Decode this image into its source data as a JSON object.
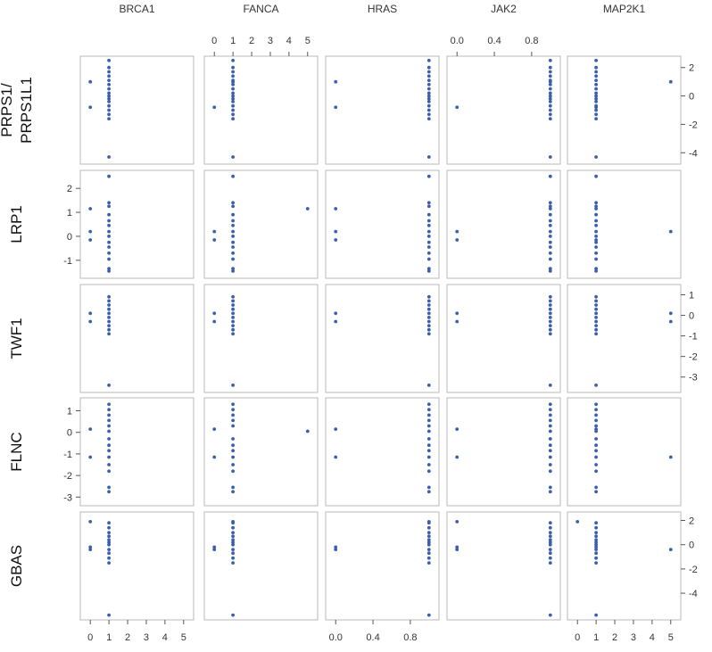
{
  "chart_data": {
    "type": "scatter",
    "title": "",
    "columns": [
      {
        "name": "BRCA1",
        "xlim": [
          -0.25,
          5.25
        ],
        "ticks": [
          0,
          1,
          2,
          3,
          4,
          5
        ],
        "tick_labels": [
          "0",
          "1",
          "2",
          "3",
          "4",
          "5"
        ]
      },
      {
        "name": "FANCA",
        "xlim": [
          -0.25,
          5.25
        ],
        "ticks": [
          0,
          1,
          2,
          3,
          4,
          5
        ],
        "tick_labels": [
          "0",
          "1",
          "2",
          "3",
          "4",
          "5"
        ]
      },
      {
        "name": "HRAS",
        "xlim": [
          -0.05,
          1.05
        ],
        "ticks": [
          0.0,
          0.4,
          0.8
        ],
        "tick_labels": [
          "0.0",
          "0.4",
          "0.8"
        ]
      },
      {
        "name": "JAK2",
        "xlim": [
          -0.05,
          1.05
        ],
        "ticks": [
          0.0,
          0.4,
          0.8
        ],
        "tick_labels": [
          "0.0",
          "0.4",
          "0.8"
        ]
      },
      {
        "name": "MAP2K1",
        "xlim": [
          -0.25,
          5.25
        ],
        "ticks": [
          0,
          1,
          2,
          3,
          4,
          5
        ],
        "tick_labels": [
          "0",
          "1",
          "2",
          "3",
          "4",
          "5"
        ]
      }
    ],
    "rows": [
      {
        "name": "PRPS1/\nPRPS1L1",
        "label_lines": [
          "PRPS1/",
          "PRPS1L1"
        ],
        "ylim": [
          -4.8,
          2.8
        ],
        "ticks": [
          -4,
          -2,
          0,
          2
        ],
        "tick_labels": [
          "-4",
          "-2",
          "0",
          "2"
        ],
        "groups": [
          {
            "v": -4.3,
            "c": [
              1,
              1,
              1,
              1,
              1
            ]
          },
          {
            "v": -1.6,
            "c": [
              1,
              1,
              1,
              1,
              1
            ]
          },
          {
            "v": -1.3,
            "c": [
              1,
              1,
              1,
              1,
              1
            ]
          },
          {
            "v": -1.0,
            "c": [
              1,
              1,
              1,
              1,
              1
            ]
          },
          {
            "v": -0.8,
            "c": [
              0,
              0,
              0,
              0,
              1
            ]
          },
          {
            "v": -0.7,
            "c": [
              1,
              1,
              1,
              1,
              1
            ]
          },
          {
            "v": -0.4,
            "c": [
              1,
              1,
              1,
              1,
              1
            ]
          },
          {
            "v": -0.2,
            "c": [
              1,
              1,
              1,
              1,
              1
            ]
          },
          {
            "v": 0.0,
            "c": [
              1,
              1,
              1,
              1,
              1
            ]
          },
          {
            "v": 0.2,
            "c": [
              1,
              1,
              1,
              1,
              1
            ]
          },
          {
            "v": 0.5,
            "c": [
              1,
              1,
              1,
              1,
              1
            ]
          },
          {
            "v": 0.8,
            "c": [
              1,
              1,
              1,
              1,
              1
            ]
          },
          {
            "v": 1.0,
            "c": [
              0,
              1,
              0,
              1,
              2
            ]
          },
          {
            "v": 1.1,
            "c": [
              1,
              1,
              1,
              1,
              1
            ]
          },
          {
            "v": 1.4,
            "c": [
              1,
              1,
              1,
              1,
              1
            ]
          },
          {
            "v": 1.7,
            "c": [
              1,
              1,
              1,
              1,
              1
            ]
          },
          {
            "v": 2.0,
            "c": [
              1,
              1,
              1,
              1,
              1
            ]
          },
          {
            "v": 2.5,
            "c": [
              1,
              1,
              1,
              1,
              1
            ]
          }
        ]
      },
      {
        "name": "LRP1",
        "label_lines": [
          "LRP1"
        ],
        "ylim": [
          -1.75,
          2.75
        ],
        "ticks": [
          -1,
          0,
          1,
          2
        ],
        "tick_labels": [
          "-1",
          "0",
          "1",
          "2"
        ],
        "groups": [
          {
            "v": -1.45,
            "c": [
              1,
              1,
              1,
              1,
              1
            ]
          },
          {
            "v": -1.35,
            "c": [
              1,
              1,
              1,
              1,
              1
            ]
          },
          {
            "v": -0.95,
            "c": [
              1,
              1,
              1,
              1,
              1
            ]
          },
          {
            "v": -0.7,
            "c": [
              1,
              1,
              1,
              1,
              1
            ]
          },
          {
            "v": -0.45,
            "c": [
              1,
              1,
              1,
              1,
              1
            ]
          },
          {
            "v": -0.25,
            "c": [
              1,
              1,
              1,
              1,
              1
            ]
          },
          {
            "v": -0.15,
            "c": [
              0,
              0,
              0,
              0,
              1
            ]
          },
          {
            "v": 0.0,
            "c": [
              1,
              1,
              1,
              1,
              1
            ]
          },
          {
            "v": 0.2,
            "c": [
              1,
              1,
              1,
              1,
              1
            ]
          },
          {
            "v": 0.2,
            "c": [
              0,
              0,
              0,
              0,
              2
            ]
          },
          {
            "v": 0.45,
            "c": [
              1,
              1,
              1,
              1,
              1
            ]
          },
          {
            "v": 0.65,
            "c": [
              1,
              1,
              1,
              1,
              1
            ]
          },
          {
            "v": 0.9,
            "c": [
              1,
              1,
              1,
              1,
              1
            ]
          },
          {
            "v": 1.15,
            "c": [
              0,
              2,
              0,
              1,
              1
            ]
          },
          {
            "v": 1.25,
            "c": [
              1,
              1,
              1,
              1,
              1
            ]
          },
          {
            "v": 1.4,
            "c": [
              1,
              1,
              1,
              1,
              1
            ]
          },
          {
            "v": 2.5,
            "c": [
              1,
              1,
              1,
              1,
              1
            ]
          }
        ]
      },
      {
        "name": "TWF1",
        "label_lines": [
          "TWF1"
        ],
        "ylim": [
          -3.75,
          1.5
        ],
        "ticks": [
          -3,
          -2,
          -1,
          0,
          1
        ],
        "tick_labels": [
          "-3",
          "-2",
          "-1",
          "0",
          "1"
        ],
        "groups": [
          {
            "v": -3.4,
            "c": [
              1,
              1,
              1,
              1,
              1
            ]
          },
          {
            "v": -0.9,
            "c": [
              1,
              1,
              1,
              1,
              1
            ]
          },
          {
            "v": -0.7,
            "c": [
              1,
              1,
              1,
              1,
              1
            ]
          },
          {
            "v": -0.5,
            "c": [
              1,
              1,
              1,
              1,
              1
            ]
          },
          {
            "v": -0.3,
            "c": [
              1,
              1,
              1,
              1,
              1
            ]
          },
          {
            "v": -0.3,
            "c": [
              0,
              0,
              0,
              0,
              2
            ]
          },
          {
            "v": -0.1,
            "c": [
              1,
              1,
              1,
              1,
              1
            ]
          },
          {
            "v": 0.1,
            "c": [
              1,
              1,
              1,
              1,
              1
            ]
          },
          {
            "v": 0.1,
            "c": [
              0,
              0,
              0,
              0,
              2
            ]
          },
          {
            "v": 0.3,
            "c": [
              1,
              1,
              1,
              1,
              1
            ]
          },
          {
            "v": 0.5,
            "c": [
              1,
              1,
              1,
              1,
              1
            ]
          },
          {
            "v": 0.7,
            "c": [
              1,
              1,
              1,
              1,
              1
            ]
          },
          {
            "v": 0.9,
            "c": [
              1,
              1,
              1,
              1,
              1
            ]
          }
        ]
      },
      {
        "name": "FLNC",
        "label_lines": [
          "FLNC"
        ],
        "ylim": [
          -3.4,
          1.6
        ],
        "ticks": [
          -3,
          -2,
          -1,
          0,
          1
        ],
        "tick_labels": [
          "-3",
          "-2",
          "-1",
          "0",
          "1"
        ],
        "groups": [
          {
            "v": -2.75,
            "c": [
              1,
              1,
              1,
              1,
              1
            ]
          },
          {
            "v": -2.55,
            "c": [
              1,
              1,
              1,
              1,
              1
            ]
          },
          {
            "v": -1.8,
            "c": [
              1,
              1,
              1,
              1,
              1
            ]
          },
          {
            "v": -1.5,
            "c": [
              1,
              1,
              1,
              1,
              1
            ]
          },
          {
            "v": -1.15,
            "c": [
              1,
              1,
              1,
              1,
              1
            ]
          },
          {
            "v": -1.15,
            "c": [
              0,
              0,
              0,
              0,
              2
            ]
          },
          {
            "v": -0.85,
            "c": [
              1,
              1,
              1,
              1,
              1
            ]
          },
          {
            "v": -0.6,
            "c": [
              1,
              1,
              1,
              1,
              1
            ]
          },
          {
            "v": -0.3,
            "c": [
              1,
              1,
              1,
              1,
              1
            ]
          },
          {
            "v": 0.05,
            "c": [
              1,
              2,
              1,
              1,
              1
            ]
          },
          {
            "v": 0.15,
            "c": [
              0,
              0,
              0,
              0,
              1
            ]
          },
          {
            "v": 0.3,
            "c": [
              1,
              1,
              1,
              1,
              1
            ]
          },
          {
            "v": 0.55,
            "c": [
              1,
              1,
              1,
              1,
              1
            ]
          },
          {
            "v": 0.8,
            "c": [
              1,
              1,
              1,
              1,
              1
            ]
          },
          {
            "v": 1.05,
            "c": [
              1,
              1,
              1,
              1,
              1
            ]
          },
          {
            "v": 1.3,
            "c": [
              1,
              1,
              1,
              1,
              1
            ]
          }
        ]
      },
      {
        "name": "GBAS",
        "label_lines": [
          "GBAS"
        ],
        "ylim": [
          -6.2,
          2.7
        ],
        "ticks": [
          -4,
          -2,
          0,
          2
        ],
        "tick_labels": [
          "-4",
          "-2",
          "0",
          "2"
        ],
        "groups": [
          {
            "v": -5.8,
            "c": [
              1,
              1,
              1,
              1,
              1
            ]
          },
          {
            "v": -1.5,
            "c": [
              1,
              1,
              1,
              1,
              1
            ]
          },
          {
            "v": -1.1,
            "c": [
              1,
              1,
              1,
              1,
              1
            ]
          },
          {
            "v": -0.7,
            "c": [
              1,
              1,
              1,
              1,
              1
            ]
          },
          {
            "v": -0.4,
            "c": [
              1,
              1,
              1,
              1,
              1
            ]
          },
          {
            "v": -0.4,
            "c": [
              0,
              0,
              0,
              0,
              2
            ]
          },
          {
            "v": -0.2,
            "c": [
              0,
              0,
              0,
              0,
              1
            ]
          },
          {
            "v": 0.0,
            "c": [
              1,
              1,
              1,
              1,
              1
            ]
          },
          {
            "v": 0.2,
            "c": [
              1,
              1,
              1,
              1,
              1
            ]
          },
          {
            "v": 0.4,
            "c": [
              1,
              1,
              1,
              1,
              1
            ]
          },
          {
            "v": 0.7,
            "c": [
              1,
              1,
              1,
              1,
              1
            ]
          },
          {
            "v": 1.0,
            "c": [
              1,
              1,
              1,
              1,
              1
            ]
          },
          {
            "v": 1.4,
            "c": [
              1,
              1,
              1,
              1,
              1
            ]
          },
          {
            "v": 1.8,
            "c": [
              1,
              1,
              1,
              1,
              1
            ]
          },
          {
            "v": 1.9,
            "c": [
              0,
              1,
              1,
              0,
              0
            ]
          }
        ]
      }
    ],
    "column_levels": [
      [
        0,
        1,
        5
      ],
      [
        0,
        1,
        5
      ],
      [
        0,
        1
      ],
      [
        0,
        1
      ],
      [
        0,
        1,
        5
      ]
    ],
    "grid": false,
    "legend": "none",
    "colors": {
      "point": "#3a5fae",
      "panel_border": "#b8b8b8",
      "axis_text": "#333333"
    }
  }
}
